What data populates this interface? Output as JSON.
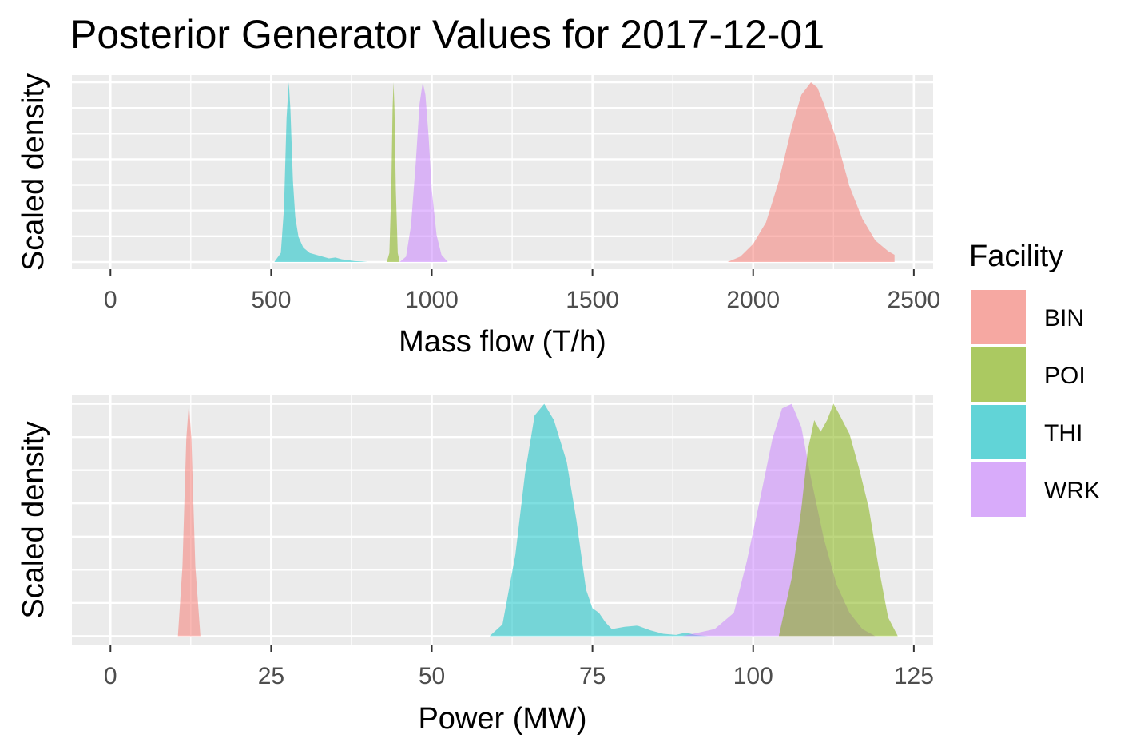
{
  "title": "Posterior Generator Values for 2017-12-01",
  "legend": {
    "title": "Facility",
    "entries": [
      {
        "name": "BIN",
        "color": "#F8766D"
      },
      {
        "name": "POI",
        "color": "#7CAE00"
      },
      {
        "name": "THI",
        "color": "#00BFC4"
      },
      {
        "name": "WRK",
        "color": "#C77CFF"
      }
    ]
  },
  "chart_data": [
    {
      "type": "area",
      "xlabel": "Mass flow (T/h)",
      "ylabel": "Scaled density",
      "xlim": [
        -120,
        2560
      ],
      "ylim": [
        -0.04,
        1.04
      ],
      "xticks": [
        "0",
        "500",
        "1000",
        "1500",
        "2000",
        "2500"
      ],
      "xtick_values": [
        0,
        500,
        1000,
        1500,
        2000,
        2500
      ],
      "grid": true,
      "series": [
        {
          "name": "THI",
          "x": [
            510,
            530,
            540,
            548,
            555,
            560,
            568,
            575,
            585,
            600,
            620,
            640,
            660,
            680,
            700,
            720,
            740,
            760,
            780,
            800
          ],
          "y": [
            0,
            0.05,
            0.3,
            0.8,
            1.0,
            0.85,
            0.45,
            0.25,
            0.14,
            0.08,
            0.05,
            0.04,
            0.03,
            0.02,
            0.025,
            0.015,
            0.01,
            0.005,
            0.003,
            0
          ]
        },
        {
          "name": "POI",
          "x": [
            860,
            868,
            874,
            878,
            881,
            884,
            888,
            894,
            900
          ],
          "y": [
            0,
            0.05,
            0.4,
            0.85,
            1.0,
            0.85,
            0.4,
            0.05,
            0
          ]
        },
        {
          "name": "WRK",
          "x": [
            900,
            920,
            935,
            950,
            962,
            972,
            980,
            990,
            1000,
            1015,
            1030,
            1050
          ],
          "y": [
            0,
            0.03,
            0.2,
            0.55,
            0.88,
            1.0,
            0.93,
            0.7,
            0.4,
            0.15,
            0.04,
            0
          ]
        },
        {
          "name": "BIN",
          "x": [
            1920,
            1960,
            2000,
            2040,
            2080,
            2120,
            2150,
            2180,
            2200,
            2220,
            2240,
            2260,
            2280,
            2300,
            2340,
            2380,
            2420,
            2440
          ],
          "y": [
            0,
            0.03,
            0.1,
            0.22,
            0.45,
            0.75,
            0.93,
            1.0,
            0.97,
            0.88,
            0.78,
            0.68,
            0.55,
            0.42,
            0.24,
            0.12,
            0.06,
            0.04
          ]
        }
      ]
    },
    {
      "type": "area",
      "xlabel": "Power (MW)",
      "ylabel": "Scaled density",
      "xlim": [
        -6,
        128
      ],
      "ylim": [
        -0.04,
        1.04
      ],
      "xticks": [
        "0",
        "25",
        "50",
        "75",
        "100",
        "125"
      ],
      "xtick_values": [
        0,
        25,
        50,
        75,
        100,
        125
      ],
      "grid": true,
      "series": [
        {
          "name": "BIN",
          "x": [
            10.5,
            11.2,
            11.8,
            12.2,
            12.6,
            13.2,
            14
          ],
          "y": [
            0,
            0.3,
            0.85,
            1.0,
            0.85,
            0.3,
            0
          ]
        },
        {
          "name": "THI",
          "x": [
            59,
            61,
            63,
            64.5,
            66,
            67.5,
            69,
            71,
            72.5,
            74,
            75,
            76,
            77,
            78,
            80,
            82,
            84,
            86,
            88,
            89.5,
            91,
            93
          ],
          "y": [
            0,
            0.05,
            0.35,
            0.7,
            0.95,
            1.0,
            0.93,
            0.75,
            0.5,
            0.2,
            0.12,
            0.1,
            0.06,
            0.03,
            0.04,
            0.045,
            0.025,
            0.01,
            0.005,
            0.015,
            0.005,
            0
          ]
        },
        {
          "name": "WRK",
          "x": [
            89,
            94,
            97,
            99,
            101,
            103,
            104.5,
            106,
            107.5,
            109,
            111,
            113,
            115,
            117,
            119
          ],
          "y": [
            0,
            0.03,
            0.1,
            0.32,
            0.58,
            0.85,
            0.98,
            1.0,
            0.9,
            0.68,
            0.42,
            0.22,
            0.1,
            0.03,
            0
          ]
        },
        {
          "name": "POI",
          "x": [
            104,
            106,
            107.5,
            108.5,
            109.5,
            110.5,
            111.5,
            112.5,
            113.5,
            115,
            116.5,
            118,
            119.5,
            121,
            122.5
          ],
          "y": [
            0,
            0.25,
            0.55,
            0.8,
            0.93,
            0.88,
            0.93,
            1.0,
            0.95,
            0.87,
            0.72,
            0.55,
            0.3,
            0.08,
            0
          ]
        }
      ]
    }
  ]
}
